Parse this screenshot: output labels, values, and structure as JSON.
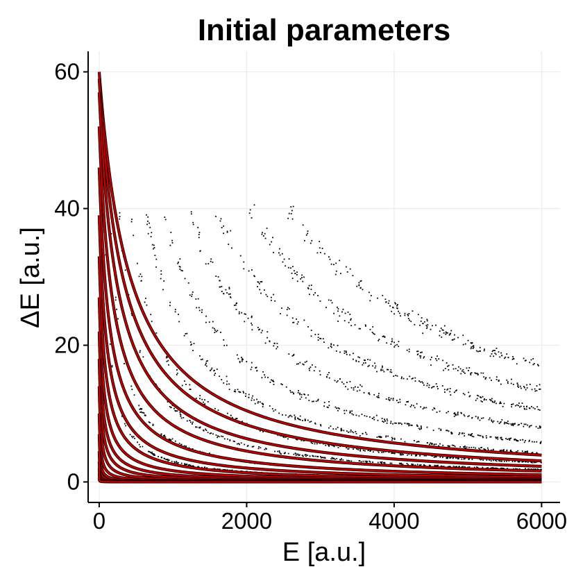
{
  "chart_data": {
    "type": "scatter",
    "title": "Initial parameters",
    "xlabel": "E [a.u.]",
    "ylabel": "ΔE [a.u.]",
    "xlim": [
      -150,
      6250
    ],
    "ylim": [
      -3,
      63
    ],
    "x_ticks": [
      0,
      2000,
      4000,
      6000
    ],
    "x_tick_labels": [
      "0",
      "2000",
      "4000",
      "6000"
    ],
    "y_ticks": [
      0,
      20,
      40,
      60
    ],
    "y_tick_labels": [
      "0",
      "20",
      "40",
      "60"
    ],
    "grid": true,
    "legend": "none",
    "colors": {
      "points": "#000000",
      "fit_curves": "#cc0000",
      "grid": "#ebebeb",
      "axis": "#000000"
    },
    "series": [
      {
        "type": "scatter",
        "points_per_band": 280,
        "point_x_range": [
          0,
          6000
        ],
        "point_ymax": 40,
        "bands_y_at_6000": [
          17,
          13.5,
          10.5,
          8,
          5.8,
          4.2,
          2.8,
          1.8,
          1.0,
          0.5
        ]
      },
      {
        "type": "line",
        "curve_form": "y = A*B/(x+B)",
        "x_range": [
          0,
          6000
        ],
        "curves": [
          {
            "A": 60,
            "B": 420
          },
          {
            "A": 59,
            "B": 330
          },
          {
            "A": 57,
            "B": 250
          },
          {
            "A": 52,
            "B": 190
          },
          {
            "A": 46,
            "B": 140
          },
          {
            "A": 39,
            "B": 110
          },
          {
            "A": 33,
            "B": 85
          },
          {
            "A": 27,
            "B": 65
          },
          {
            "A": 22,
            "B": 50
          },
          {
            "A": 18,
            "B": 38
          },
          {
            "A": 14,
            "B": 28
          },
          {
            "A": 10,
            "B": 20
          },
          {
            "A": 7,
            "B": 14
          },
          {
            "A": 4.5,
            "B": 10
          },
          {
            "A": 3,
            "B": 7
          },
          {
            "A": 2,
            "B": 5
          },
          {
            "A": 1.2,
            "B": 4
          },
          {
            "A": 0.6,
            "B": 3
          }
        ]
      }
    ]
  }
}
